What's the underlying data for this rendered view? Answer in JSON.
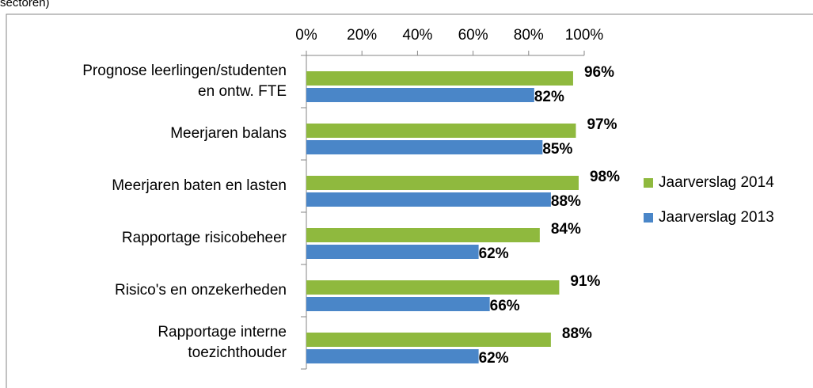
{
  "chart_data": {
    "type": "bar",
    "orientation": "horizontal",
    "title": "sectoren)",
    "categories": [
      "Prognose leerlingen/studenten en ontw. FTE",
      "Meerjaren balans",
      "Meerjaren baten en lasten",
      "Rapportage risicobeheer",
      "Risico's en onzekerheden",
      "Rapportage interne toezichthouder"
    ],
    "series": [
      {
        "name": "Jaarverslag 2014",
        "color": "#8fb93e",
        "values": [
          96,
          97,
          98,
          84,
          91,
          88
        ],
        "value_labels": [
          "96%",
          "97%",
          "98%",
          "84%",
          "91%",
          "88%"
        ]
      },
      {
        "name": "Jaarverslag 2013",
        "color": "#4a86c8",
        "values": [
          82,
          85,
          88,
          62,
          66,
          62
        ],
        "value_labels": [
          "82%",
          "85%",
          "88%",
          "62%",
          "66%",
          "62%"
        ]
      }
    ],
    "xlim": [
      0,
      100
    ],
    "xticks": [
      {
        "value": 0,
        "label": "0%"
      },
      {
        "value": 20,
        "label": "20%"
      },
      {
        "value": 40,
        "label": "40%"
      },
      {
        "value": 60,
        "label": "60%"
      },
      {
        "value": 80,
        "label": "80%"
      },
      {
        "value": 100,
        "label": "100%"
      }
    ],
    "legend": "right"
  }
}
